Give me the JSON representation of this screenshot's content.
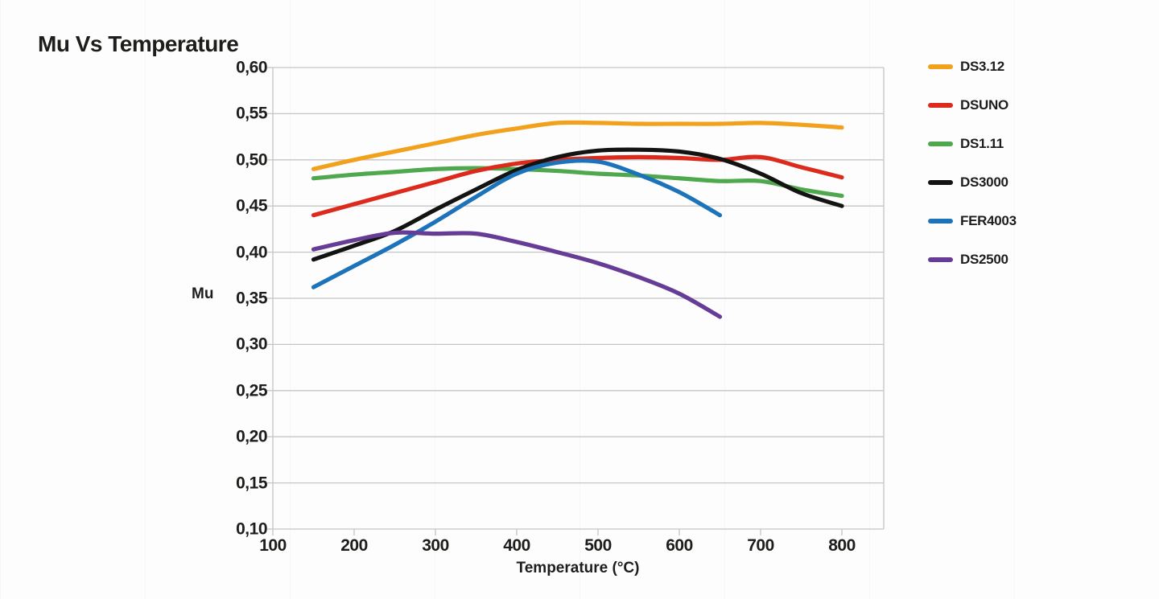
{
  "page": {
    "title": "Mu Vs Temperature"
  },
  "colors": {
    "text": "#1d1d1b",
    "grid": "#c5c5c5",
    "background": "#fdfdfd"
  },
  "chart_data": {
    "type": "line",
    "title": "Mu Vs Temperature",
    "xlabel": "Temperature (°C)",
    "ylabel": "Mu",
    "xlim": [
      100,
      851
    ],
    "ylim": [
      0.1,
      0.6
    ],
    "xticks": [
      100,
      200,
      300,
      400,
      500,
      600,
      700,
      800
    ],
    "yticks": [
      0.6,
      0.55,
      0.5,
      0.45,
      0.4,
      0.35,
      0.3,
      0.25,
      0.2,
      0.15,
      0.1
    ],
    "ytick_labels": [
      "0,60",
      "0,55",
      "0,50",
      "0,45",
      "0,40",
      "0,35",
      "0,30",
      "0,25",
      "0,20",
      "0,15",
      "0,10"
    ],
    "decimal_separator": ",",
    "grid": "horizontal",
    "legend_position": "right",
    "series": [
      {
        "name": "DS3.12",
        "color": "#F2A11D",
        "x": [
          150,
          200,
          250,
          300,
          350,
          400,
          450,
          500,
          550,
          600,
          650,
          700,
          750,
          800
        ],
        "y": [
          0.49,
          0.5,
          0.509,
          0.518,
          0.527,
          0.534,
          0.54,
          0.54,
          0.539,
          0.539,
          0.539,
          0.54,
          0.538,
          0.535
        ]
      },
      {
        "name": "DSUNO",
        "color": "#DC2A1C",
        "x": [
          150,
          200,
          250,
          300,
          350,
          400,
          450,
          500,
          550,
          600,
          650,
          700,
          750,
          800
        ],
        "y": [
          0.44,
          0.452,
          0.464,
          0.476,
          0.488,
          0.496,
          0.5,
          0.502,
          0.503,
          0.502,
          0.5,
          0.503,
          0.492,
          0.481
        ]
      },
      {
        "name": "DS1.11",
        "color": "#4FA84D",
        "x": [
          150,
          200,
          250,
          300,
          350,
          400,
          450,
          500,
          550,
          600,
          650,
          700,
          750,
          800
        ],
        "y": [
          0.48,
          0.484,
          0.487,
          0.49,
          0.491,
          0.49,
          0.488,
          0.485,
          0.483,
          0.48,
          0.477,
          0.477,
          0.468,
          0.461
        ]
      },
      {
        "name": "DS3000",
        "color": "#131312",
        "x": [
          150,
          200,
          250,
          300,
          350,
          400,
          450,
          500,
          550,
          600,
          650,
          700,
          750,
          800
        ],
        "y": [
          0.392,
          0.407,
          0.423,
          0.446,
          0.468,
          0.489,
          0.503,
          0.51,
          0.511,
          0.509,
          0.501,
          0.485,
          0.464,
          0.45
        ]
      },
      {
        "name": "FER4003",
        "color": "#1C73B9",
        "x": [
          150,
          200,
          250,
          300,
          350,
          400,
          450,
          500,
          550,
          600,
          650
        ],
        "y": [
          0.362,
          0.385,
          0.408,
          0.433,
          0.46,
          0.485,
          0.497,
          0.498,
          0.484,
          0.465,
          0.44
        ]
      },
      {
        "name": "DS2500",
        "color": "#663C96",
        "x": [
          150,
          200,
          250,
          300,
          350,
          400,
          450,
          500,
          550,
          600,
          650
        ],
        "y": [
          0.403,
          0.413,
          0.421,
          0.42,
          0.42,
          0.411,
          0.4,
          0.388,
          0.373,
          0.355,
          0.33
        ]
      }
    ]
  }
}
